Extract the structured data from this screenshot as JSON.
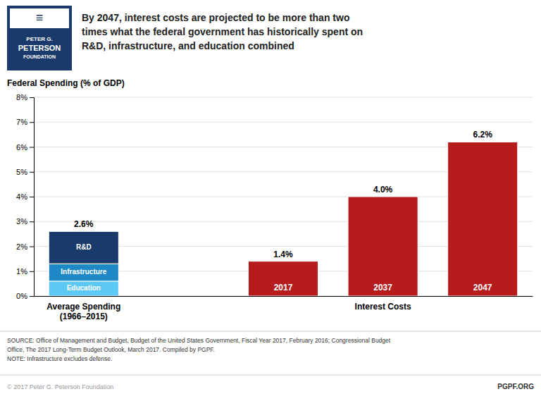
{
  "chart_data": {
    "type": "bar",
    "stacked": true,
    "data_labels": true,
    "grid": true,
    "title": "By 2047, interest costs are projected to be more than two\ntimes what the federal government has historically spent on\nR&D, infrastructure, and education combined",
    "y_label": "Federal Spending (% of GDP)",
    "categories": [
      "Average Spending\n(1966–2015)",
      null,
      null,
      "Interest Costs",
      null
    ],
    "series": [
      {
        "name": "Education",
        "color": "#5BC8F5",
        "values": [
          0.6,
          null,
          null,
          null,
          null
        ]
      },
      {
        "name": "Infrastructure",
        "color": "#1E88C7",
        "values": [
          0.7,
          null,
          null,
          null,
          null
        ]
      },
      {
        "name": "R&D",
        "color": "#1A3A6B",
        "values": [
          1.3,
          null,
          null,
          null,
          null
        ]
      },
      {
        "color": "#B71C1C",
        "values": [
          null,
          null,
          1.4,
          4.0,
          6.2
        ],
        "labels": [
          null,
          null,
          "2017",
          "2037",
          "2047"
        ],
        "value_labels": [
          null,
          null,
          "1.4%",
          "4.0%",
          "6.2%"
        ]
      }
    ],
    "totals": [
      2.6,
      null,
      null,
      null,
      null
    ],
    "total_labels": [
      "2.6%",
      null,
      null,
      null,
      null
    ],
    "ylim": [
      0,
      8
    ],
    "yticks": [
      {
        "value": 0,
        "label": "0%"
      },
      {
        "value": 1,
        "label": "1%"
      },
      {
        "value": 2,
        "label": "2%"
      },
      {
        "value": 3,
        "label": "3%"
      },
      {
        "value": 4,
        "label": "4%"
      },
      {
        "value": 5,
        "label": "5%"
      },
      {
        "value": 6,
        "label": "6%"
      },
      {
        "value": 7,
        "label": "7%"
      },
      {
        "value": 8,
        "label": "8%"
      }
    ],
    "logo": {
      "texts": [
        "≡",
        "PETER G.",
        "PETERSON",
        "FOUNDATION"
      ],
      "color": "#1A3A6B"
    },
    "source": "SOURCE: Office of Management and Budget, Budget of the United States Government, Fiscal Year 2017, February 2016; Congressional Budget\nOffice, The 2017 Long-Term Budget Outlook, March 2017. Compiled by PGPF.\nNOTE: Infrastructure excludes defense.",
    "copyright": "© 2017 Peter G. Peterson Foundation",
    "website": "PGPF.ORG"
  }
}
